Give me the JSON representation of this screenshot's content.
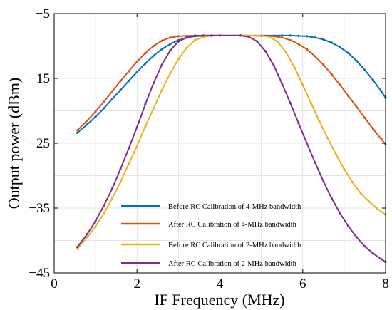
{
  "chart_data": {
    "type": "line",
    "title": "",
    "xlabel": "IF Frequency (MHz)",
    "ylabel": "Output power (dBm)",
    "xlim": [
      0,
      8
    ],
    "ylim": [
      -45,
      -5
    ],
    "xticks": [
      0,
      2,
      4,
      6,
      8
    ],
    "yticks": [
      -5,
      -15,
      -25,
      -35,
      -45
    ],
    "xtick_labels": [
      "0",
      "2",
      "4",
      "6",
      "8"
    ],
    "ytick_labels": [
      "−5",
      "−15",
      "−25",
      "−35",
      "−45"
    ],
    "grid": true,
    "legend_position": "lower-center",
    "series": [
      {
        "name": "Before RC Calibration of 4-MHz bandwidth",
        "color": "#0072BD",
        "x": [
          0.56,
          0.8,
          1.0,
          1.2,
          1.4,
          1.6,
          1.8,
          2.0,
          2.2,
          2.4,
          2.6,
          2.8,
          3.0,
          3.2,
          3.4,
          3.6,
          3.8,
          4.0,
          4.5,
          5.0,
          5.5,
          5.7,
          5.9,
          6.1,
          6.3,
          6.5,
          6.7,
          6.9,
          7.1,
          7.3,
          7.5,
          7.7,
          7.9,
          8.0
        ],
        "y": [
          -23.4,
          -22.1,
          -20.9,
          -19.6,
          -18.2,
          -16.8,
          -15.4,
          -14.0,
          -12.7,
          -11.5,
          -10.5,
          -9.7,
          -9.1,
          -8.7,
          -8.5,
          -8.45,
          -8.4,
          -8.4,
          -8.4,
          -8.4,
          -8.4,
          -8.4,
          -8.45,
          -8.5,
          -8.7,
          -9.0,
          -9.5,
          -10.2,
          -11.1,
          -12.3,
          -13.7,
          -15.3,
          -17.0,
          -18.0
        ]
      },
      {
        "name": "After RC Calibration of 4-MHz bandwidth",
        "color": "#D95319",
        "x": [
          0.56,
          0.8,
          1.0,
          1.2,
          1.4,
          1.6,
          1.8,
          2.0,
          2.2,
          2.4,
          2.6,
          2.8,
          3.0,
          3.2,
          3.4,
          3.6,
          4.0,
          4.5,
          5.0,
          5.3,
          5.5,
          5.7,
          5.9,
          6.1,
          6.3,
          6.5,
          6.7,
          6.9,
          7.1,
          7.3,
          7.5,
          7.7,
          7.9,
          8.0
        ],
        "y": [
          -23.0,
          -21.5,
          -20.1,
          -18.6,
          -17.0,
          -15.4,
          -13.9,
          -12.4,
          -11.1,
          -10.0,
          -9.2,
          -8.7,
          -8.5,
          -8.45,
          -8.4,
          -8.4,
          -8.4,
          -8.4,
          -8.45,
          -8.5,
          -8.7,
          -9.1,
          -9.7,
          -10.5,
          -11.6,
          -12.9,
          -14.4,
          -16.0,
          -17.7,
          -19.4,
          -21.1,
          -22.8,
          -24.4,
          -25.2
        ]
      },
      {
        "name": "Before RC Calibration of 2-MHz bandwidth",
        "color": "#EDB120",
        "x": [
          0.56,
          0.8,
          1.0,
          1.2,
          1.4,
          1.6,
          1.8,
          2.0,
          2.2,
          2.4,
          2.6,
          2.8,
          3.0,
          3.2,
          3.4,
          3.6,
          3.8,
          4.0,
          4.5,
          5.0,
          5.2,
          5.4,
          5.6,
          5.8,
          6.0,
          6.2,
          6.4,
          6.6,
          6.8,
          7.0,
          7.2,
          7.4,
          7.6,
          7.8,
          8.0
        ],
        "y": [
          -41.3,
          -39.5,
          -37.8,
          -35.8,
          -33.5,
          -31.0,
          -28.2,
          -25.4,
          -22.4,
          -19.6,
          -16.8,
          -14.2,
          -12.0,
          -10.3,
          -9.1,
          -8.6,
          -8.45,
          -8.4,
          -8.4,
          -8.4,
          -8.6,
          -9.4,
          -11.0,
          -13.3,
          -16.0,
          -18.8,
          -21.6,
          -24.2,
          -26.7,
          -29.0,
          -31.0,
          -32.7,
          -34.0,
          -35.1,
          -36.0
        ]
      },
      {
        "name": "After RC Calibration of 2-MHz bandwidth",
        "color": "#7E2F8E",
        "x": [
          0.56,
          0.8,
          1.0,
          1.2,
          1.4,
          1.6,
          1.8,
          2.0,
          2.2,
          2.4,
          2.6,
          2.8,
          3.0,
          3.2,
          3.4,
          3.6,
          3.8,
          4.0,
          4.5,
          4.7,
          4.9,
          5.1,
          5.3,
          5.5,
          5.7,
          5.9,
          6.1,
          6.3,
          6.5,
          6.7,
          6.9,
          7.1,
          7.3,
          7.5,
          7.7,
          7.9,
          8.0
        ],
        "y": [
          -41.0,
          -39.0,
          -37.0,
          -34.6,
          -32.0,
          -29.0,
          -25.8,
          -22.5,
          -19.0,
          -15.7,
          -12.9,
          -10.7,
          -9.3,
          -8.7,
          -8.45,
          -8.4,
          -8.4,
          -8.4,
          -8.4,
          -8.6,
          -9.3,
          -10.8,
          -13.0,
          -15.8,
          -18.8,
          -21.9,
          -25.0,
          -28.0,
          -30.9,
          -33.5,
          -35.8,
          -37.8,
          -39.5,
          -40.9,
          -42.0,
          -42.9,
          -43.3
        ]
      }
    ]
  }
}
